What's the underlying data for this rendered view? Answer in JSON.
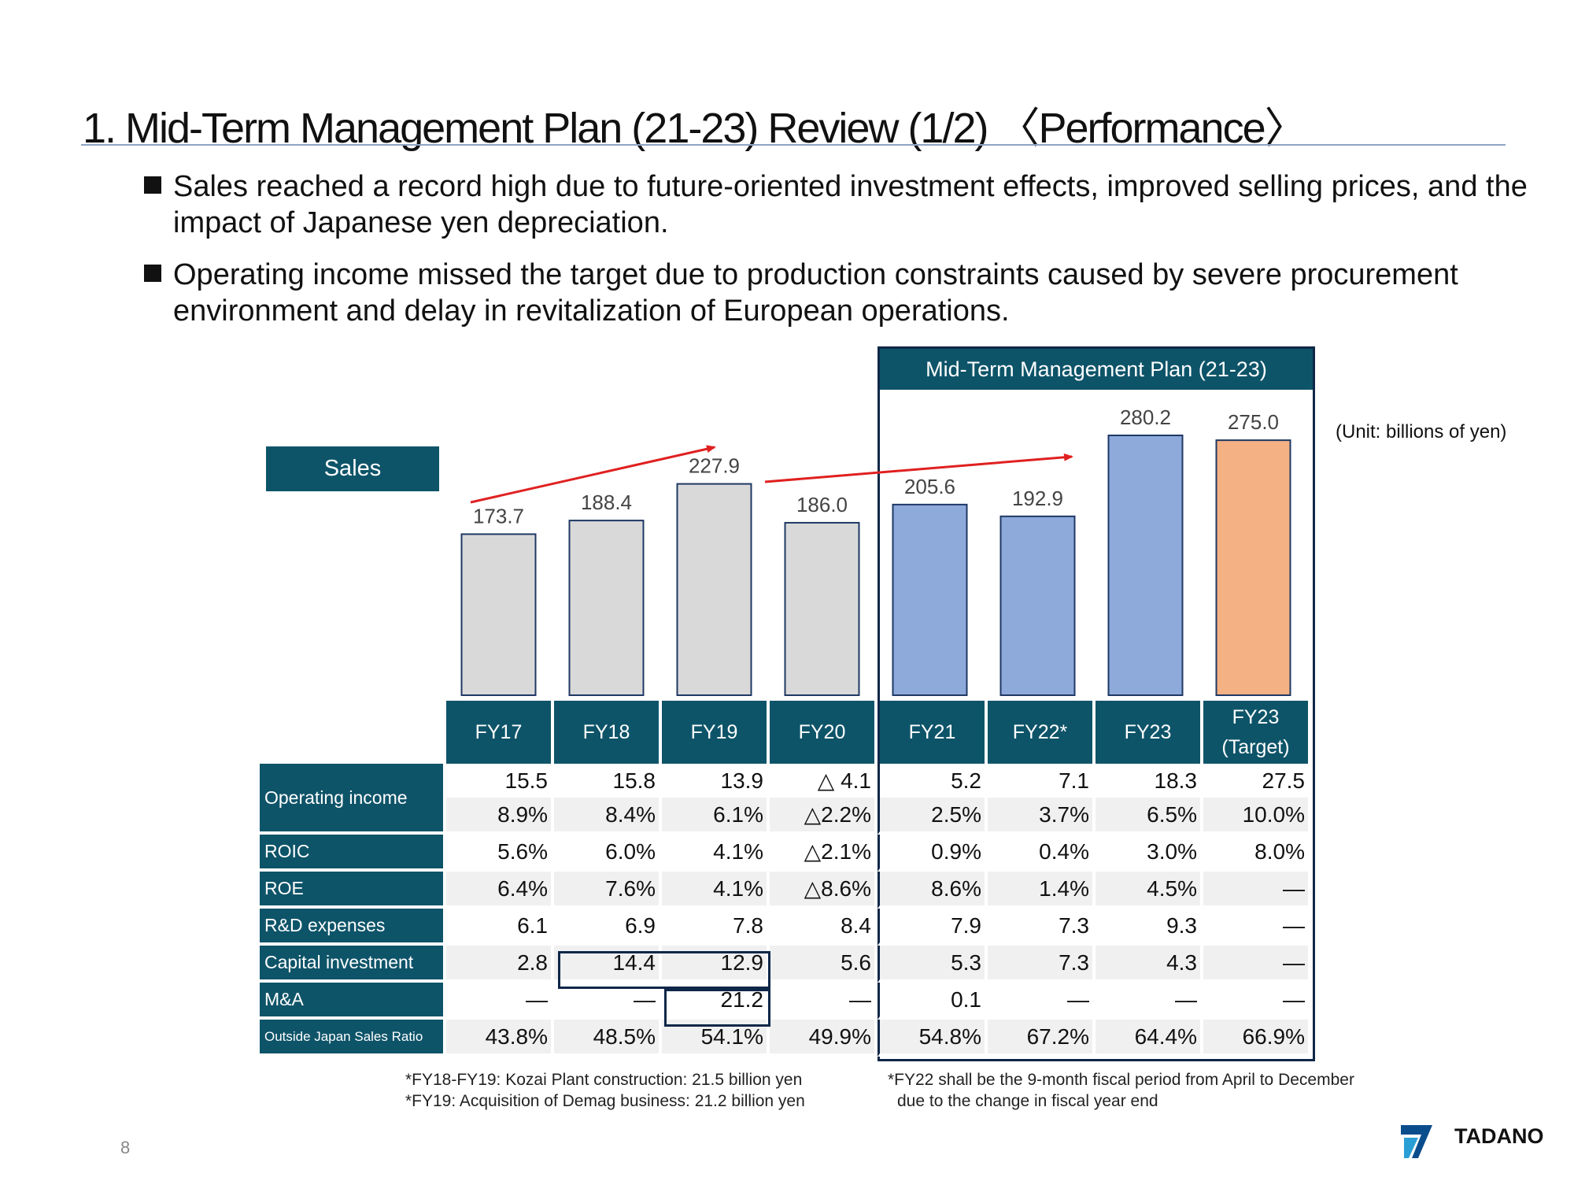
{
  "title": "1. Mid-Term Management Plan (21-23) Review (1/2) 〈Performance〉",
  "bullets": [
    "Sales reached a record high due to future-oriented investment effects, improved selling prices, and the impact of Japanese yen depreciation.",
    "Operating income missed the target due to production constraints caused by severe procurement environment and delay in revitalization of European operations."
  ],
  "plan_header": "Mid-Term Management Plan (21-23)",
  "unit_note": "(Unit: billions of yen)",
  "sales_label": "Sales",
  "chart_data": {
    "type": "bar",
    "categories": [
      "FY17",
      "FY18",
      "FY19",
      "FY20",
      "FY21",
      "FY22*",
      "FY23",
      "FY23 (Target)"
    ],
    "values": [
      173.7,
      188.4,
      227.9,
      186.0,
      205.6,
      192.9,
      280.2,
      275.0
    ],
    "value_labels": [
      "173.7",
      "188.4",
      "227.9",
      "186.0",
      "205.6",
      "192.9",
      "280.2",
      "275.0"
    ],
    "ylim": [
      0,
      300
    ],
    "colors": {
      "actual_past": "#d9d9d9",
      "actual_plan": "#8eaadb",
      "target": "#f4b183",
      "outline": "#1f3864",
      "trend_arrow": "#e02020"
    }
  },
  "table": {
    "headers": [
      {
        "line1": "FY17",
        "line2": ""
      },
      {
        "line1": "FY18",
        "line2": ""
      },
      {
        "line1": "FY19",
        "line2": ""
      },
      {
        "line1": "FY20",
        "line2": ""
      },
      {
        "line1": "FY21",
        "line2": ""
      },
      {
        "line1": "FY22*",
        "line2": ""
      },
      {
        "line1": "FY23",
        "line2": ""
      },
      {
        "line1": "FY23",
        "line2": "(Target)"
      }
    ],
    "rows": [
      {
        "label": "Operating income",
        "cells": [
          "15.5",
          "15.8",
          "13.9",
          "△ 4.1",
          "5.2",
          "7.1",
          "18.3",
          "27.5"
        ]
      },
      {
        "label": "",
        "cells": [
          "8.9%",
          "8.4%",
          "6.1%",
          "△2.2%",
          "2.5%",
          "3.7%",
          "6.5%",
          "10.0%"
        ]
      },
      {
        "label": "ROIC",
        "cells": [
          "5.6%",
          "6.0%",
          "4.1%",
          "△2.1%",
          "0.9%",
          "0.4%",
          "3.0%",
          "8.0%"
        ]
      },
      {
        "label": "ROE",
        "cells": [
          "6.4%",
          "7.6%",
          "4.1%",
          "△8.6%",
          "8.6%",
          "1.4%",
          "4.5%",
          "―"
        ]
      },
      {
        "label": "R&D expenses",
        "cells": [
          "6.1",
          "6.9",
          "7.8",
          "8.4",
          "7.9",
          "7.3",
          "9.3",
          "―"
        ]
      },
      {
        "label": "Capital investment",
        "cells": [
          "2.8",
          "14.4",
          "12.9",
          "5.6",
          "5.3",
          "7.3",
          "4.3",
          "―"
        ]
      },
      {
        "label": "M&A",
        "cells": [
          "―",
          "―",
          "21.2",
          "―",
          "0.1",
          "―",
          "―",
          "―"
        ]
      },
      {
        "label": "Outside Japan Sales Ratio",
        "cells": [
          "43.8%",
          "48.5%",
          "54.1%",
          "49.9%",
          "54.8%",
          "67.2%",
          "64.4%",
          "66.9%"
        ]
      }
    ]
  },
  "footnotes": {
    "left": [
      "*FY18-FY19: Kozai Plant construction: 21.5 billion yen",
      "*FY19: Acquisition of Demag business: 21.2 billion yen"
    ],
    "right": [
      "*FY22 shall be the 9-month fiscal period from April to December",
      "due to the change in fiscal year end"
    ]
  },
  "page_number": "8",
  "logo": {
    "name": "tadano-logo",
    "text": "TADANO"
  }
}
